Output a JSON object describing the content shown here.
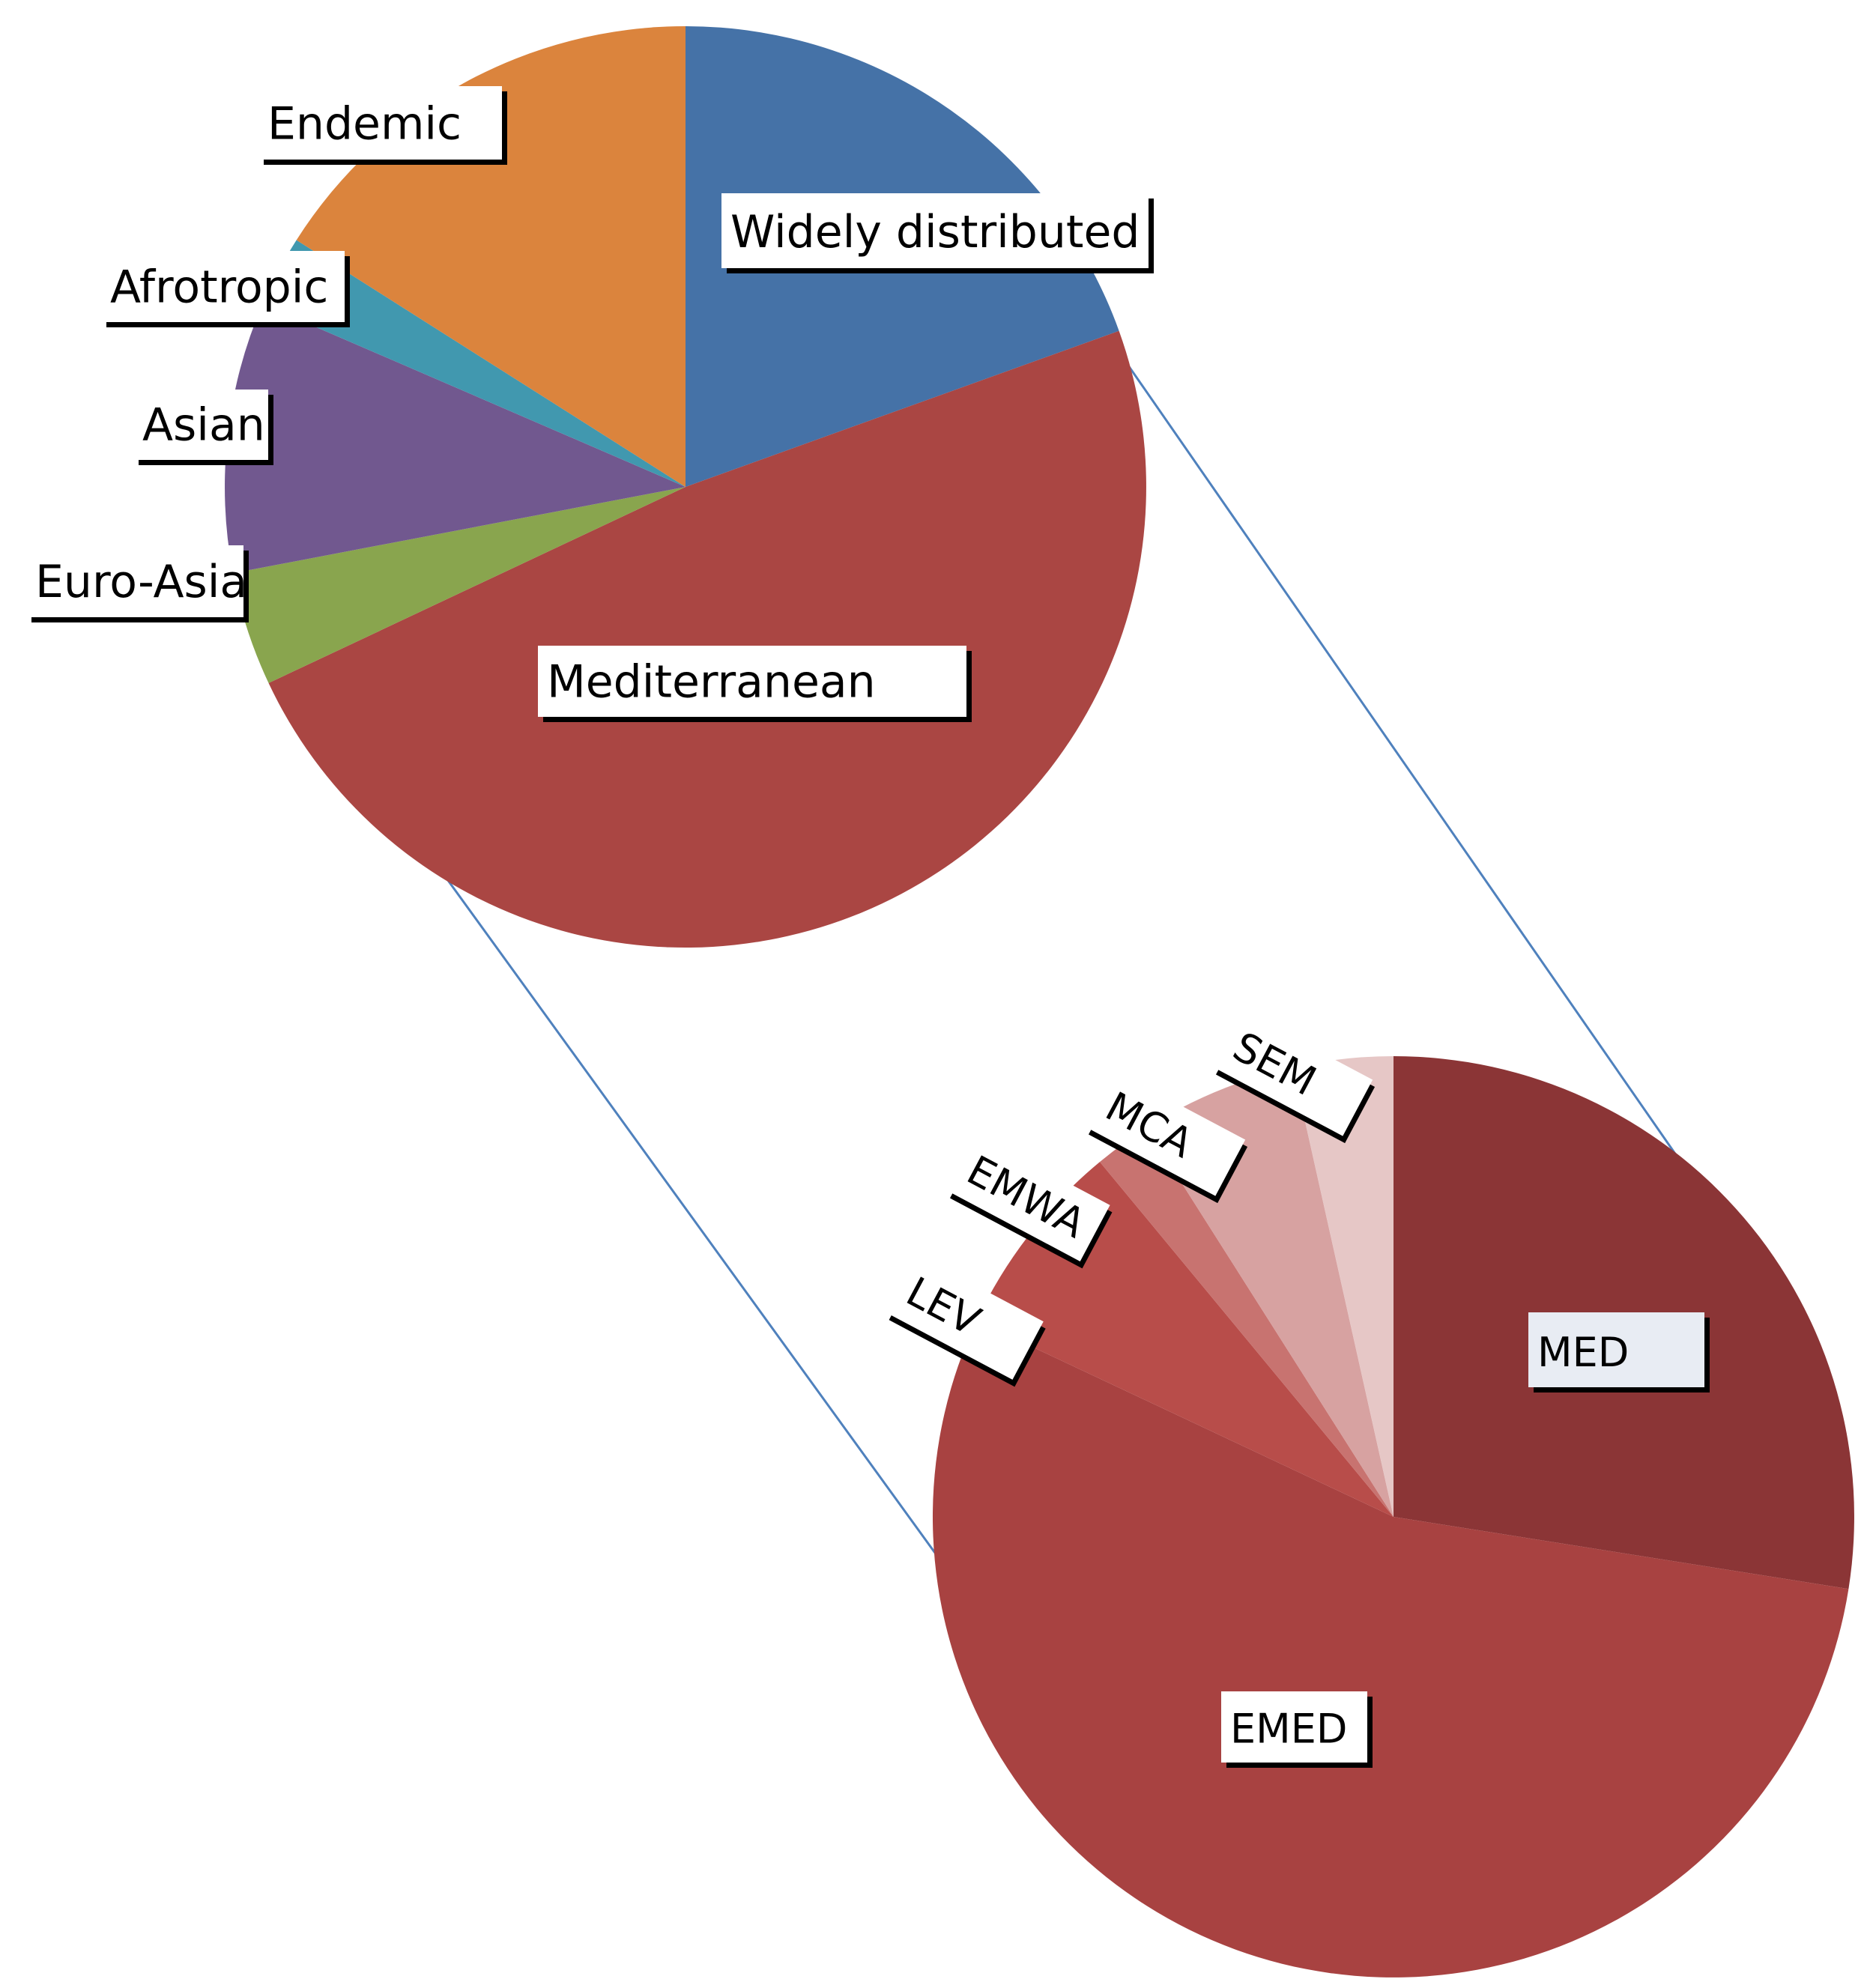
{
  "chart_data": [
    {
      "type": "pie",
      "categories": [
        "Widely distributed",
        "Mediterranean",
        "Euro-Asia",
        "Asian",
        "Afrotropic",
        "Endemic"
      ],
      "values": [
        19.5,
        48.5,
        4.0,
        9.5,
        2.5,
        16.0
      ],
      "colors": [
        "#4572A7",
        "#AA4643",
        "#89A54E",
        "#71588F",
        "#4198AF",
        "#DB843D"
      ],
      "start": "12 o'clock",
      "direction": "clockwise"
    },
    {
      "type": "pie",
      "categories": [
        "MED",
        "EMED",
        "LEV",
        "EMWA",
        "MCA",
        "SEM"
      ],
      "values": [
        27.5,
        54.5,
        7.0,
        2.0,
        5.5,
        3.5
      ],
      "colors": [
        "#8B3536",
        "#A84241",
        "#B84D4A",
        "#C87370",
        "#D7A2A1",
        "#E6C7C6"
      ],
      "start": "12 o'clock",
      "direction": "clockwise",
      "breakdown_of": "Mediterranean"
    }
  ]
}
